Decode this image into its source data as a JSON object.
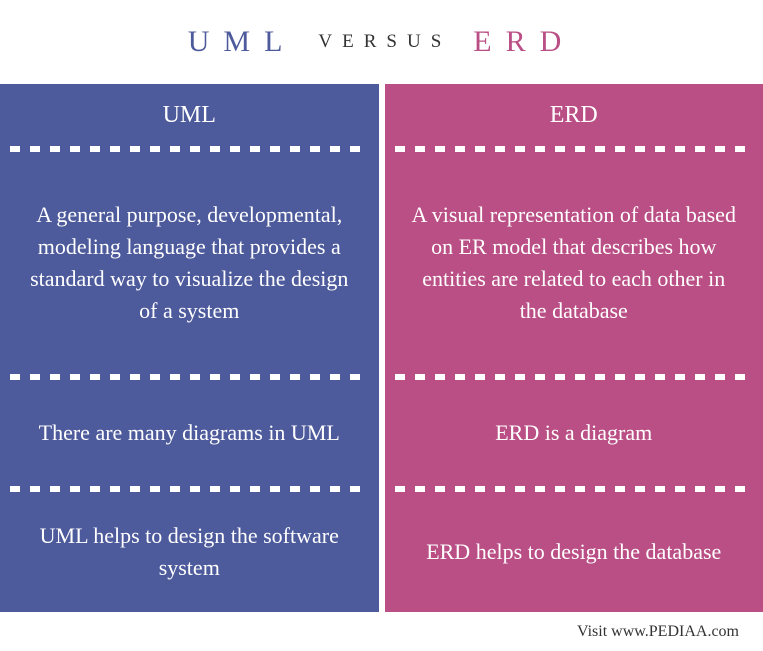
{
  "header": {
    "left_word": "UML",
    "left_color": "#4d5a9b",
    "middle_word": "VERSUS",
    "middle_color": "#333333",
    "right_word": "ERD",
    "right_color": "#ba4f85"
  },
  "columns": {
    "left": {
      "bg_color": "#4d5a9b",
      "title": "UML",
      "definition": "A general purpose, developmental, modeling language that provides a standard way to visualize the design of a system",
      "middle": "There are many diagrams in UML",
      "last": "UML helps to design the software system"
    },
    "right": {
      "bg_color": "#ba4f85",
      "title": "ERD",
      "definition": "A  visual representation of data based on ER model that describes how entities are related to each other in the database",
      "middle": "ERD is a diagram",
      "last": "ERD helps to design the database"
    }
  },
  "footer": {
    "text": "Visit www.PEDIAA.com"
  },
  "styling": {
    "text_color": "#ffffff",
    "divider_pattern": "dotted",
    "font_family": "Georgia"
  }
}
